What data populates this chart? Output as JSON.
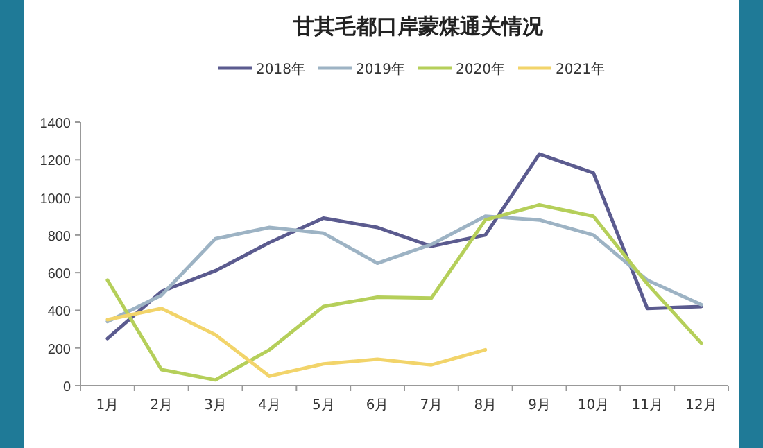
{
  "chart_data": {
    "type": "line",
    "title": "甘其毛都口岸蒙煤通关情况",
    "categories": [
      "1月",
      "2月",
      "3月",
      "4月",
      "5月",
      "6月",
      "7月",
      "8月",
      "9月",
      "10月",
      "11月",
      "12月"
    ],
    "series": [
      {
        "name": "2018年",
        "color": "#5b5b8f",
        "values": [
          250,
          500,
          610,
          760,
          890,
          840,
          740,
          800,
          1230,
          1130,
          410,
          420
        ]
      },
      {
        "name": "2019年",
        "color": "#9db3c4",
        "values": [
          340,
          480,
          780,
          840,
          810,
          650,
          750,
          900,
          880,
          800,
          560,
          430
        ]
      },
      {
        "name": "2020年",
        "color": "#b5cf5a",
        "values": [
          560,
          85,
          30,
          190,
          420,
          470,
          465,
          880,
          960,
          900,
          540,
          225
        ]
      },
      {
        "name": "2021年",
        "color": "#f2d46a",
        "values": [
          350,
          410,
          270,
          50,
          115,
          140,
          110,
          190,
          null,
          null,
          null,
          null
        ]
      }
    ],
    "ylim": [
      0,
      1400
    ],
    "yticks": [
      0,
      200,
      400,
      600,
      800,
      1000,
      1200,
      1400
    ],
    "grid": false,
    "legend": "top",
    "marker": "none",
    "line_style": "solid"
  }
}
